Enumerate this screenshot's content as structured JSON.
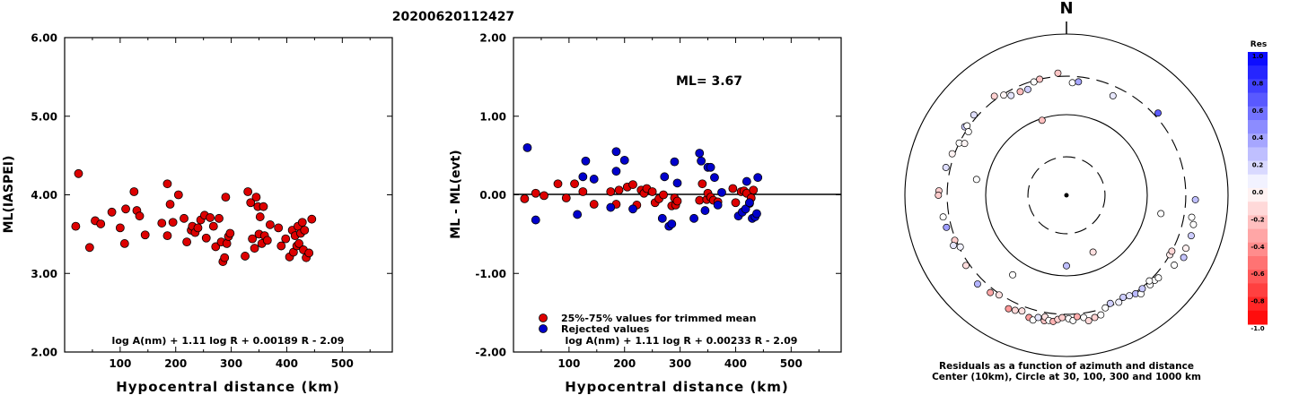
{
  "title": "20200620112427",
  "chart_data": [
    {
      "type": "scatter",
      "xlabel": "Hypocentral distance (km)",
      "ylabel": "ML(IASPEI)",
      "xlim": [
        0,
        590
      ],
      "ylim": [
        2.0,
        6.0
      ],
      "x_ticks": [
        100,
        200,
        300,
        400,
        500
      ],
      "y_ticks": [
        "2.00",
        "3.00",
        "4.00",
        "5.00",
        "6.00"
      ],
      "formula": "log A(nm) + 1.11 log R + 0.00189 R - 2.09",
      "marker_color": "#dd0000",
      "points": [
        [
          20,
          3.6
        ],
        [
          25,
          4.27
        ],
        [
          45,
          3.33
        ],
        [
          55,
          3.67
        ],
        [
          65,
          3.63
        ],
        [
          85,
          3.78
        ],
        [
          100,
          3.58
        ],
        [
          108,
          3.38
        ],
        [
          110,
          3.82
        ],
        [
          125,
          4.04
        ],
        [
          130,
          3.8
        ],
        [
          135,
          3.73
        ],
        [
          145,
          3.49
        ],
        [
          175,
          3.64
        ],
        [
          185,
          3.48
        ],
        [
          185,
          4.14
        ],
        [
          190,
          3.88
        ],
        [
          195,
          3.65
        ],
        [
          205,
          4.0
        ],
        [
          215,
          3.7
        ],
        [
          220,
          3.4
        ],
        [
          228,
          3.55
        ],
        [
          230,
          3.6
        ],
        [
          235,
          3.52
        ],
        [
          240,
          3.58
        ],
        [
          245,
          3.68
        ],
        [
          252,
          3.74
        ],
        [
          255,
          3.45
        ],
        [
          262,
          3.71
        ],
        [
          268,
          3.6
        ],
        [
          272,
          3.34
        ],
        [
          278,
          3.7
        ],
        [
          282,
          3.4
        ],
        [
          285,
          3.15
        ],
        [
          288,
          3.2
        ],
        [
          290,
          3.97
        ],
        [
          292,
          3.38
        ],
        [
          295,
          3.47
        ],
        [
          298,
          3.51
        ],
        [
          325,
          3.22
        ],
        [
          330,
          4.04
        ],
        [
          335,
          3.9
        ],
        [
          338,
          3.44
        ],
        [
          342,
          3.32
        ],
        [
          345,
          3.97
        ],
        [
          348,
          3.85
        ],
        [
          350,
          3.5
        ],
        [
          352,
          3.72
        ],
        [
          355,
          3.38
        ],
        [
          358,
          3.85
        ],
        [
          360,
          3.48
        ],
        [
          365,
          3.42
        ],
        [
          370,
          3.62
        ],
        [
          385,
          3.58
        ],
        [
          390,
          3.35
        ],
        [
          398,
          3.44
        ],
        [
          405,
          3.21
        ],
        [
          410,
          3.55
        ],
        [
          412,
          3.27
        ],
        [
          415,
          3.48
        ],
        [
          418,
          3.35
        ],
        [
          420,
          3.6
        ],
        [
          422,
          3.38
        ],
        [
          425,
          3.51
        ],
        [
          428,
          3.65
        ],
        [
          430,
          3.3
        ],
        [
          432,
          3.55
        ],
        [
          435,
          3.2
        ],
        [
          440,
          3.26
        ],
        [
          445,
          3.69
        ]
      ]
    },
    {
      "type": "scatter",
      "xlabel": "Hypocentral distance (km)",
      "ylabel": "ML - ML(evt)",
      "xlim": [
        0,
        590
      ],
      "ylim": [
        -2.0,
        2.0
      ],
      "x_ticks": [
        100,
        200,
        300,
        400,
        500
      ],
      "y_ticks": [
        "-2.00",
        "-1.00",
        "0.00",
        "1.00",
        "2.00"
      ],
      "annotation": "ML= 3.67",
      "formula": "log A(nm) + 1.11 log R + 0.00233 R - 2.09",
      "legend": [
        "25%-75% values for trimmed mean",
        "Rejected values"
      ],
      "series": [
        {
          "name": "25%-75% values for trimmed mean",
          "color": "#dd0000",
          "points": [
            [
              20,
              -0.05
            ],
            [
              40,
              0.02
            ],
            [
              55,
              -0.01
            ],
            [
              80,
              0.14
            ],
            [
              95,
              -0.04
            ],
            [
              110,
              0.14
            ],
            [
              125,
              0.04
            ],
            [
              145,
              -0.12
            ],
            [
              175,
              0.04
            ],
            [
              185,
              -0.12
            ],
            [
              190,
              0.06
            ],
            [
              205,
              0.1
            ],
            [
              215,
              0.13
            ],
            [
              222,
              -0.13
            ],
            [
              230,
              0.06
            ],
            [
              235,
              0.02
            ],
            [
              240,
              0.08
            ],
            [
              250,
              0.04
            ],
            [
              255,
              -0.1
            ],
            [
              262,
              -0.05
            ],
            [
              270,
              0.0
            ],
            [
              285,
              -0.14
            ],
            [
              290,
              -0.04
            ],
            [
              292,
              -0.13
            ],
            [
              295,
              -0.08
            ],
            [
              335,
              -0.07
            ],
            [
              340,
              0.14
            ],
            [
              348,
              -0.06
            ],
            [
              350,
              0.02
            ],
            [
              355,
              -0.03
            ],
            [
              360,
              -0.07
            ],
            [
              368,
              -0.09
            ],
            [
              395,
              0.08
            ],
            [
              400,
              -0.1
            ],
            [
              410,
              0.04
            ],
            [
              415,
              0.05
            ],
            [
              420,
              0.02
            ],
            [
              425,
              -0.11
            ],
            [
              428,
              -0.04
            ],
            [
              432,
              0.06
            ]
          ]
        },
        {
          "name": "Rejected values",
          "color": "#0000cc",
          "points": [
            [
              25,
              0.6
            ],
            [
              40,
              -0.32
            ],
            [
              115,
              -0.25
            ],
            [
              125,
              0.23
            ],
            [
              130,
              0.43
            ],
            [
              145,
              0.2
            ],
            [
              175,
              -0.16
            ],
            [
              185,
              0.55
            ],
            [
              185,
              0.3
            ],
            [
              200,
              0.44
            ],
            [
              215,
              -0.18
            ],
            [
              268,
              -0.3
            ],
            [
              272,
              0.23
            ],
            [
              280,
              -0.4
            ],
            [
              285,
              -0.37
            ],
            [
              290,
              0.42
            ],
            [
              295,
              0.15
            ],
            [
              325,
              -0.3
            ],
            [
              335,
              0.53
            ],
            [
              338,
              0.43
            ],
            [
              345,
              -0.2
            ],
            [
              350,
              0.35
            ],
            [
              355,
              0.35
            ],
            [
              362,
              0.22
            ],
            [
              368,
              -0.13
            ],
            [
              375,
              0.03
            ],
            [
              405,
              -0.27
            ],
            [
              412,
              -0.22
            ],
            [
              418,
              -0.18
            ],
            [
              420,
              0.17
            ],
            [
              425,
              -0.1
            ],
            [
              430,
              -0.3
            ],
            [
              435,
              -0.28
            ],
            [
              438,
              -0.24
            ],
            [
              440,
              0.22
            ]
          ]
        }
      ]
    },
    {
      "type": "scatter",
      "title": "N",
      "caption_line1": "Residuals as a function of azimuth and distance",
      "caption_line2": "Center (10km), Circle at 30, 100, 300 and 1000 km",
      "colorbar_title": "Res",
      "colorbar_ticks": [
        "1.0",
        "0.8",
        "0.6",
        "0.4",
        "0.2",
        "0.0",
        "-0.2",
        "-0.4",
        "-0.6",
        "-0.8",
        "-1.0"
      ],
      "rings_km": [
        30,
        100,
        300,
        1000
      ],
      "colors": {
        "positive": "#0000ff",
        "negative": "#ff0000",
        "zero": "#ffffff"
      },
      "points_note": "azimuth_deg, distance_km, residual",
      "points": [
        [
          331,
          260,
          0.1
        ],
        [
          328,
          292,
          -0.04
        ],
        [
          324,
          330,
          -0.18
        ],
        [
          336,
          255,
          -0.26
        ],
        [
          340,
          250,
          0.2
        ],
        [
          344,
          290,
          0.0
        ],
        [
          347,
          300,
          -0.23
        ],
        [
          356,
          330,
          -0.22
        ],
        [
          3,
          250,
          0.0
        ],
        [
          6,
          260,
          0.35
        ],
        [
          25,
          230,
          0.09
        ],
        [
          48,
          335,
          0.64
        ],
        [
          92,
          395,
          0.25
        ],
        [
          103,
          410,
          0.0
        ],
        [
          108,
          420,
          0.2
        ],
        [
          114,
          415,
          -0.06
        ],
        [
          118,
          440,
          0.23
        ],
        [
          120,
          300,
          -0.08
        ],
        [
          304,
          330,
          0.2
        ],
        [
          305,
          318,
          0.0
        ],
        [
          303,
          280,
          0.0
        ],
        [
          296,
          300,
          0.0
        ],
        [
          290,
          320,
          -0.05
        ],
        [
          311,
          330,
          0.12
        ],
        [
          297,
          260,
          -0.04
        ],
        [
          283,
          340,
          0.13
        ],
        [
          272,
          380,
          -0.19
        ],
        [
          270,
          385,
          -0.2
        ],
        [
          255,
          345,
          0.38
        ],
        [
          260,
          355,
          0.0
        ],
        [
          248,
          310,
          -0.2
        ],
        [
          246,
          340,
          0.1
        ],
        [
          244,
          290,
          0.05
        ],
        [
          235,
          330,
          -0.13
        ],
        [
          225,
          360,
          0.3
        ],
        [
          218,
          340,
          -0.35
        ],
        [
          214,
          310,
          -0.12
        ],
        [
          207,
          380,
          -0.4
        ],
        [
          204,
          365,
          -0.15
        ],
        [
          201,
          345,
          -0.12
        ],
        [
          197,
          385,
          -0.38
        ],
        [
          195,
          400,
          0.0
        ],
        [
          193,
          360,
          0.1
        ],
        [
          190,
          380,
          -0.24
        ],
        [
          190,
          340,
          -0.12
        ],
        [
          188,
          370,
          0.0
        ],
        [
          186,
          375,
          -0.3
        ],
        [
          184,
          350,
          -0.18
        ],
        [
          182,
          330,
          -0.2
        ],
        [
          179,
          340,
          0.0
        ],
        [
          177,
          360,
          0.0
        ],
        [
          175,
          325,
          -0.32
        ],
        [
          172,
          340,
          0.0
        ],
        [
          170,
          380,
          -0.15
        ],
        [
          167,
          360,
          -0.17
        ],
        [
          164,
          350,
          0.0
        ],
        [
          161,
          300,
          0.0
        ],
        [
          158,
          280,
          0.18
        ],
        [
          154,
          300,
          0.05
        ],
        [
          151,
          280,
          0.2
        ],
        [
          148,
          295,
          0.1
        ],
        [
          145,
          310,
          0.28
        ],
        [
          143,
          340,
          0.0
        ],
        [
          141,
          310,
          0.22
        ],
        [
          137,
          330,
          0.0
        ],
        [
          134,
          330,
          0.0
        ],
        [
          132,
          340,
          0.0
        ],
        [
          118,
          300,
          -0.16
        ],
        [
          100,
          375,
          0.0
        ],
        [
          123,
          390,
          0.0
        ],
        [
          136,
          300,
          0.0
        ],
        [
          101,
          155,
          0.0
        ],
        [
          155,
          60,
          -0.12
        ],
        [
          180,
          75,
          0.25
        ],
        [
          214,
          155,
          0.0
        ],
        [
          280,
          135,
          0.0
        ],
        [
          342,
          95,
          -0.25
        ]
      ]
    }
  ]
}
